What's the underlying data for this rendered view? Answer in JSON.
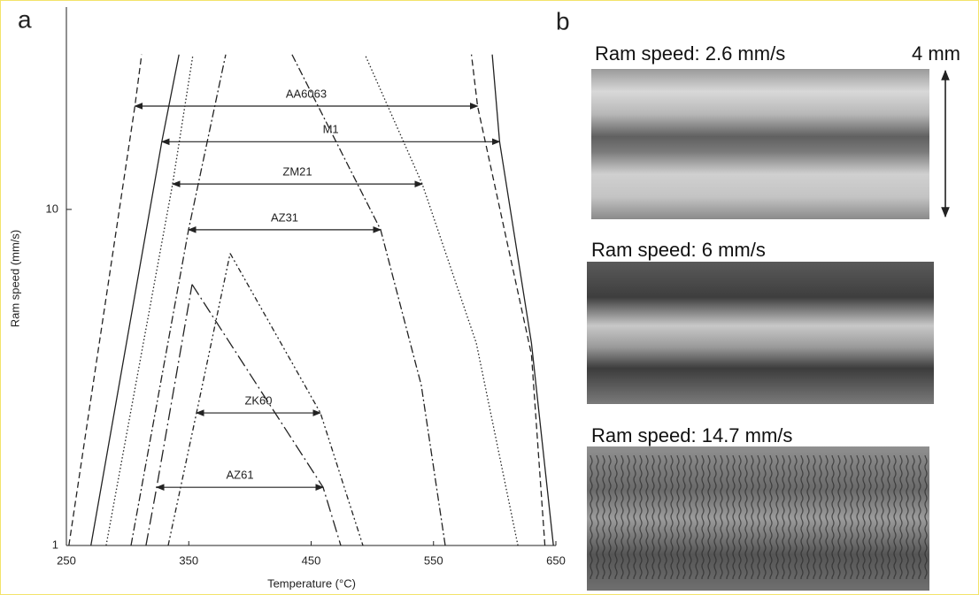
{
  "chart_data": {
    "type": "line",
    "panel_label": "a",
    "xlabel": "Temperature (°C)",
    "ylabel": "Ram speed (mm/s)",
    "xlim": [
      250,
      650
    ],
    "ylim": [
      1,
      40
    ],
    "log_y": true,
    "xticks": [
      250,
      350,
      450,
      550,
      650
    ],
    "yticks": [
      1,
      10
    ],
    "color": "#222222",
    "series": [
      {
        "dash": "7,4",
        "x": [
          252,
          306,
          311.5
        ],
        "values": [
          1,
          20.3,
          28.9
        ]
      },
      {
        "dash": "7,4",
        "x": [
          641,
          630,
          586,
          581
        ],
        "values": [
          1,
          3.7,
          20.3,
          28.9
        ]
      },
      {
        "dash": "none",
        "x": [
          270,
          328,
          342
        ],
        "values": [
          1,
          15.9,
          28.9
        ]
      },
      {
        "dash": "none",
        "x": [
          648,
          630,
          604,
          598
        ],
        "values": [
          1,
          4,
          15.9,
          28.9
        ]
      },
      {
        "dash": "1.5,2.5",
        "x": [
          282.5,
          336.8,
          353.4
        ],
        "values": [
          1,
          11.9,
          28.9
        ]
      },
      {
        "dash": "1.5,2.5",
        "x": [
          619,
          585,
          540.8,
          494
        ],
        "values": [
          1,
          4,
          11.9,
          28.9
        ]
      },
      {
        "dash": "9,3,2,3",
        "x": [
          302.8,
          349.8,
          380.2
        ],
        "values": [
          1,
          8.7,
          28.9
        ]
      },
      {
        "dash": "9,3,2,3",
        "x": [
          559.6,
          540,
          506.8,
          434.4
        ],
        "values": [
          1,
          3,
          8.7,
          28.9
        ]
      },
      {
        "dash": "6,3,2,3,2,3",
        "x": [
          333.2,
          356.3,
          383.8
        ],
        "values": [
          1,
          2.48,
          7.4
        ]
      },
      {
        "dash": "6,3,2,3,2,3",
        "x": [
          383.8,
          457.6,
          492.3
        ],
        "values": [
          7.4,
          2.48,
          1
        ]
      },
      {
        "dash": "14,4,2,4",
        "x": [
          315,
          323.8,
          352.7
        ],
        "values": [
          1,
          1.49,
          5.98
        ]
      },
      {
        "dash": "14,4,2,4",
        "x": [
          352.7,
          459.8,
          474.2
        ],
        "values": [
          5.98,
          1.49,
          1
        ]
      }
    ],
    "annotations": [
      {
        "text": "AA6063",
        "y": 20.3,
        "x": [
          306,
          586
        ]
      },
      {
        "text": "M1",
        "y": 15.9,
        "x": [
          328,
          604
        ]
      },
      {
        "text": "ZM21",
        "y": 11.9,
        "x": [
          336.8,
          540.8
        ]
      },
      {
        "text": "AZ31",
        "y": 8.7,
        "x": [
          349.8,
          506.8
        ]
      },
      {
        "text": "ZK60",
        "y": 2.48,
        "x": [
          356.3,
          457.6
        ]
      },
      {
        "text": "AZ61",
        "y": 1.49,
        "x": [
          323.8,
          459.8
        ]
      }
    ]
  },
  "panel_b": {
    "label": "b",
    "scale_label": "4 mm",
    "images": [
      {
        "caption": "Ram speed: 2.6 mm/s"
      },
      {
        "caption": "Ram speed: 6 mm/s"
      },
      {
        "caption": "Ram speed: 14.7 mm/s"
      }
    ]
  }
}
